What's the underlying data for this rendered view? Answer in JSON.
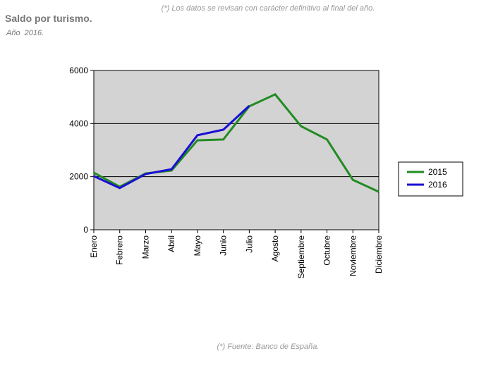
{
  "chart_data": {
    "type": "line",
    "title": "Saldo por turismo.",
    "subtitle": "Año  2016.",
    "note": "(*) Los datos se revisan con carácter definitivo al final del año.",
    "source": "(*) Fuente: Banco de España.",
    "categories": [
      "Enero",
      "Febrero",
      "Marzo",
      "Abril",
      "Mayo",
      "Junio",
      "Julio",
      "Agosto",
      "Septiembre",
      "Octubre",
      "Noviembre",
      "Diciembre"
    ],
    "series": [
      {
        "name": "2015",
        "color": "#228b22",
        "values": [
          2150,
          1620,
          2120,
          2230,
          3370,
          3400,
          4650,
          5100,
          3900,
          3400,
          1880,
          1430
        ]
      },
      {
        "name": "2016",
        "color": "#1a0fd4",
        "values": [
          2020,
          1570,
          2100,
          2280,
          3560,
          3770,
          4670,
          null,
          null,
          null,
          null,
          null
        ]
      }
    ],
    "ylim": [
      0,
      6000
    ],
    "yticks": [
      0,
      2000,
      4000,
      6000
    ],
    "grid": true,
    "legend": "right"
  }
}
